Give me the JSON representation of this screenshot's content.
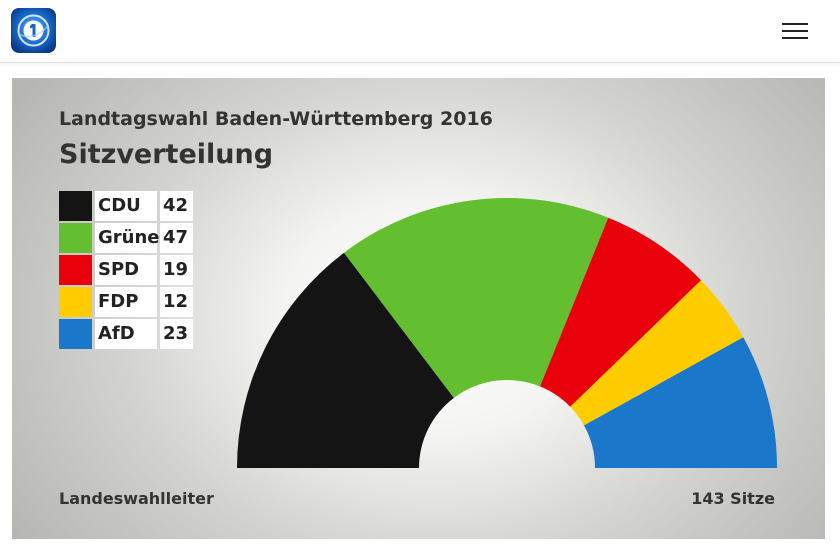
{
  "header": {
    "logo_icon": "tagesschau-logo-icon",
    "menu_icon": "hamburger-menu-icon"
  },
  "chart_data": {
    "type": "pie",
    "subtype": "semicircle-parliament",
    "title": "Landtagswahl Baden-Württemberg 2016",
    "subtitle": "Sitzverteilung",
    "categories": [
      "CDU",
      "Grüne",
      "SPD",
      "FDP",
      "AfD"
    ],
    "values": [
      42,
      47,
      19,
      12,
      23
    ],
    "colors": [
      "#141414",
      "#63bf2f",
      "#e8000b",
      "#ffcc00",
      "#1a77c9"
    ],
    "total_label": "143 Sitze",
    "source": "Landeswahlleiter",
    "legend_position": "top-left"
  }
}
